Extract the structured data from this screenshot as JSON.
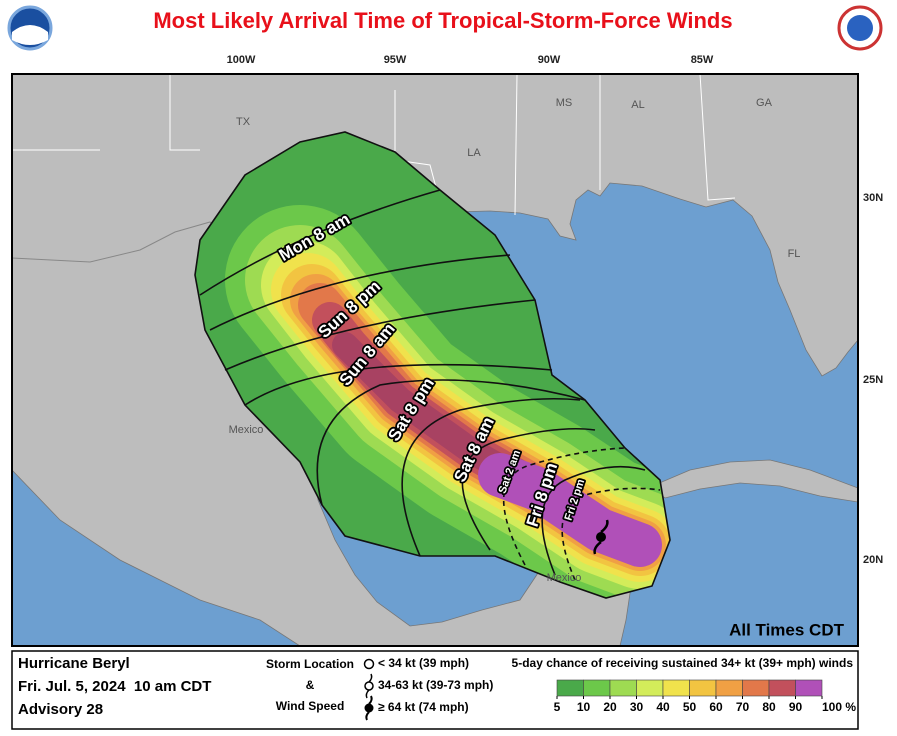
{
  "header": {
    "title": "Most Likely Arrival Time of Tropical-Storm-Force Winds"
  },
  "map": {
    "longitude_labels": [
      "100W",
      "95W",
      "90W",
      "85W"
    ],
    "latitude_labels": [
      "30N",
      "25N",
      "20N"
    ],
    "place_labels": [
      "TX",
      "LA",
      "MS",
      "AL",
      "GA",
      "FL",
      "Mexico",
      "Mexico"
    ],
    "arrival_labels": [
      "Mon 8 am",
      "Sun 8 pm",
      "Sun 8 am",
      "Sat 8 pm",
      "Sat 8 am",
      "Sat 2 am",
      "Fri 8 pm",
      "Fri 2 pm"
    ],
    "time_note": "All Times CDT"
  },
  "footer": {
    "storm": {
      "name": "Hurricane Beryl",
      "date": "Fri. Jul. 5, 2024  10 am CDT",
      "advisory": "Advisory 28"
    },
    "key": {
      "title_lines": [
        "Storm Location",
        "&",
        "Wind Speed"
      ],
      "entries": [
        "< 34 kt (39 mph)",
        "34-63 kt (39-73 mph)",
        "≥ 64 kt (74 mph)"
      ]
    },
    "legend": {
      "title": "5-day chance of receiving sustained 34+ kt (39+ mph) winds",
      "colors": [
        "#4aa94a",
        "#6cc84a",
        "#9edb52",
        "#d3ec5a",
        "#f0e24c",
        "#f2c441",
        "#f0a044",
        "#e2784a",
        "#c2505c",
        "#b050b8"
      ],
      "ticks": [
        5,
        10,
        20,
        30,
        40,
        50,
        60,
        70,
        80,
        90,
        {
          "value": 100,
          "label": "100 %"
        }
      ]
    }
  }
}
